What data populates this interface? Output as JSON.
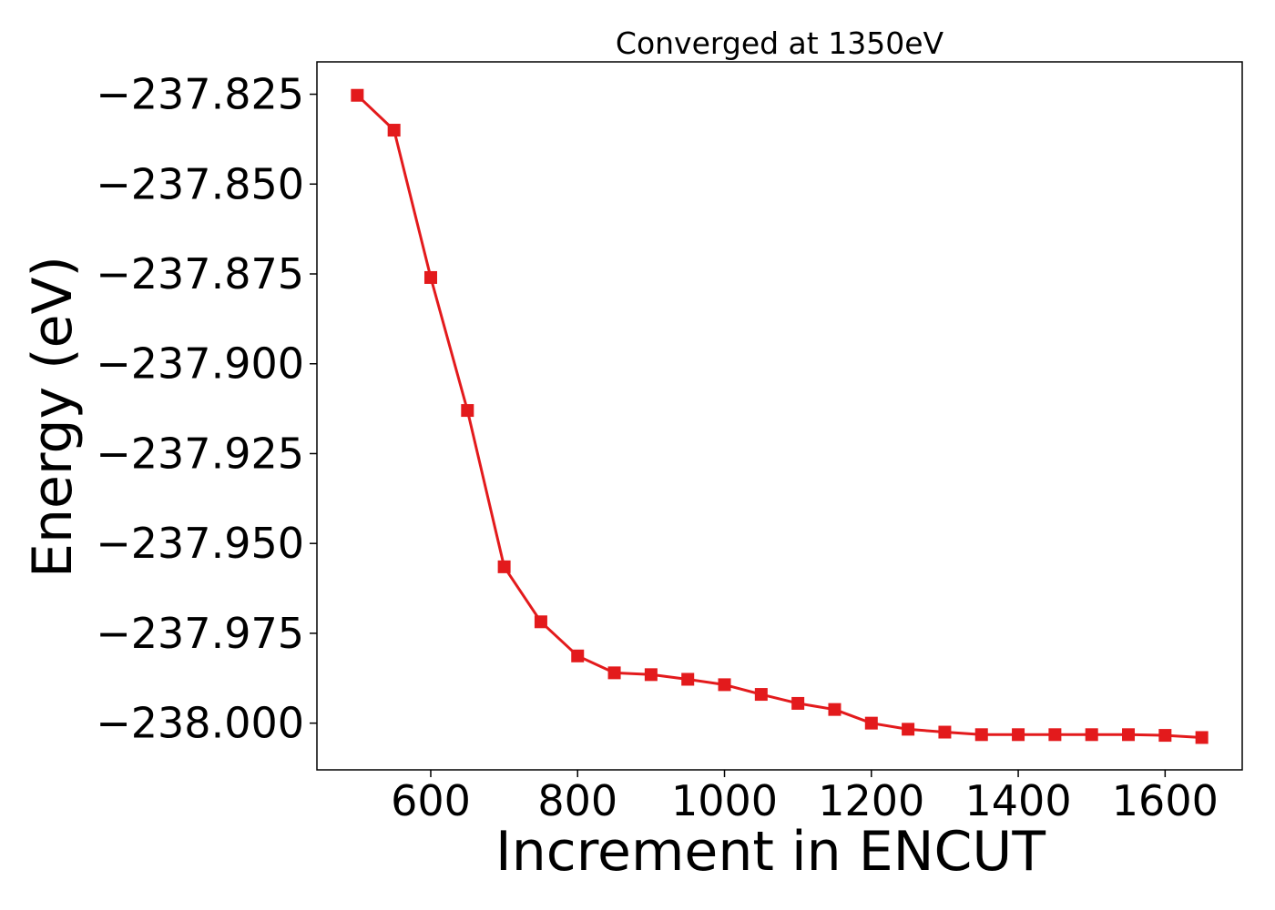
{
  "chart_data": {
    "type": "line",
    "title": "Converged at 1350eV",
    "xlabel": "Increment in ENCUT",
    "ylabel": "Energy (eV)",
    "xlim": [
      445,
      1705
    ],
    "ylim": [
      -238.013,
      -237.816
    ],
    "xticks": [
      600,
      800,
      1000,
      1200,
      1400,
      1600
    ],
    "xtick_labels": [
      "600",
      "800",
      "1000",
      "1200",
      "1400",
      "1600"
    ],
    "yticks": [
      -237.825,
      -237.85,
      -237.875,
      -237.9,
      -237.925,
      -237.95,
      -237.975,
      -238.0
    ],
    "ytick_labels": [
      "−237.825",
      "−237.850",
      "−237.875",
      "−237.900",
      "−237.925",
      "−237.950",
      "−237.975",
      "−238.000"
    ],
    "grid": false,
    "series": [
      {
        "color": "#e31a1c",
        "marker": "square",
        "x": [
          500,
          550,
          600,
          650,
          700,
          750,
          800,
          850,
          900,
          950,
          1000,
          1050,
          1100,
          1150,
          1200,
          1250,
          1300,
          1350,
          1400,
          1450,
          1500,
          1550,
          1600,
          1650
        ],
        "y": [
          -237.8253,
          -237.835,
          -237.876,
          -237.913,
          -237.9565,
          -237.9718,
          -237.9813,
          -237.986,
          -237.9865,
          -237.9878,
          -237.9893,
          -237.992,
          -237.9945,
          -237.9962,
          -238.0,
          -238.0017,
          -238.0025,
          -238.0032,
          -238.0032,
          -238.0032,
          -238.0032,
          -238.0032,
          -238.0034,
          -238.004
        ]
      }
    ]
  }
}
